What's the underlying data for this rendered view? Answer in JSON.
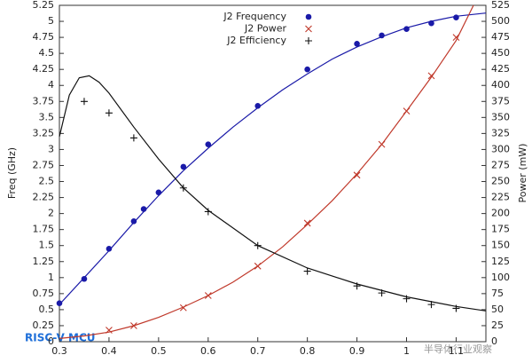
{
  "chart_data": {
    "type": "scatter",
    "ylabel": "Freq (GHz)",
    "y2label": "Power (mW)",
    "xlim": [
      0.3,
      1.16
    ],
    "xticks": [
      0.3,
      0.4,
      0.5,
      0.6,
      0.7,
      0.8,
      0.9,
      1,
      1.1
    ],
    "ylim": [
      0,
      5.25
    ],
    "yticks": [
      0,
      0.25,
      0.5,
      0.75,
      1,
      1.25,
      1.5,
      1.75,
      2,
      2.25,
      2.5,
      2.75,
      3,
      3.25,
      3.5,
      3.75,
      4,
      4.25,
      4.5,
      4.75,
      5,
      5.25
    ],
    "y2lim": [
      0,
      525
    ],
    "y2ticks": [
      0,
      25,
      50,
      75,
      100,
      125,
      150,
      175,
      200,
      225,
      250,
      275,
      300,
      325,
      350,
      375,
      400,
      425,
      450,
      475,
      500,
      525
    ],
    "legend": "top",
    "series": [
      {
        "name": "J2 Frequency",
        "color": "#1a1aa8",
        "marker": "dot",
        "x": [
          0.3,
          0.35,
          0.4,
          0.45,
          0.47,
          0.5,
          0.55,
          0.6,
          0.7,
          0.8,
          0.9,
          0.95,
          1.0,
          1.05,
          1.1
        ],
        "values": [
          0.6,
          0.98,
          1.45,
          1.88,
          2.07,
          2.33,
          2.73,
          3.08,
          3.68,
          4.25,
          4.65,
          4.78,
          4.88,
          4.97,
          5.06
        ]
      },
      {
        "name": "J2 Power",
        "color": "#c0392b",
        "marker": "cross",
        "axis": "y2",
        "x": [
          0.4,
          0.45,
          0.55,
          0.6,
          0.7,
          0.8,
          0.9,
          0.95,
          1.0,
          1.05,
          1.1
        ],
        "values": [
          18,
          25,
          53,
          72,
          118,
          185,
          260,
          308,
          360,
          415,
          475
        ]
      },
      {
        "name": "J2 Efficiency",
        "color": "#111111",
        "marker": "plus",
        "x": [
          0.35,
          0.4,
          0.45,
          0.55,
          0.6,
          0.7,
          0.8,
          0.9,
          0.95,
          1.0,
          1.05,
          1.1
        ],
        "values": [
          3.75,
          3.57,
          3.18,
          2.4,
          2.03,
          1.5,
          1.1,
          0.87,
          0.76,
          0.67,
          0.58,
          0.52
        ]
      }
    ],
    "fits": [
      {
        "color": "#1a1aa8",
        "x": [
          0.3,
          0.35,
          0.4,
          0.45,
          0.5,
          0.55,
          0.6,
          0.65,
          0.7,
          0.75,
          0.8,
          0.85,
          0.9,
          0.95,
          1.0,
          1.05,
          1.1,
          1.16
        ],
        "values": [
          0.58,
          1.0,
          1.42,
          1.86,
          2.28,
          2.67,
          3.02,
          3.35,
          3.65,
          3.93,
          4.18,
          4.41,
          4.6,
          4.76,
          4.9,
          5.0,
          5.08,
          5.13
        ]
      },
      {
        "color": "#c0392b",
        "axis": "y2",
        "x": [
          0.3,
          0.35,
          0.4,
          0.45,
          0.5,
          0.55,
          0.6,
          0.65,
          0.7,
          0.75,
          0.8,
          0.85,
          0.9,
          0.95,
          1.0,
          1.05,
          1.1,
          1.135
        ],
        "values": [
          5,
          9,
          15,
          25,
          38,
          54,
          72,
          93,
          118,
          148,
          183,
          220,
          262,
          308,
          360,
          413,
          470,
          525
        ]
      },
      {
        "color": "#111111",
        "x": [
          0.3,
          0.32,
          0.34,
          0.36,
          0.38,
          0.4,
          0.45,
          0.5,
          0.55,
          0.6,
          0.7,
          0.8,
          0.9,
          1.0,
          1.1,
          1.16
        ],
        "values": [
          3.2,
          3.85,
          4.12,
          4.15,
          4.05,
          3.88,
          3.35,
          2.85,
          2.4,
          2.05,
          1.5,
          1.15,
          0.9,
          0.7,
          0.55,
          0.48
        ]
      }
    ],
    "watermarks": [
      "RISC-V MCU",
      "半导体行业观察"
    ]
  }
}
